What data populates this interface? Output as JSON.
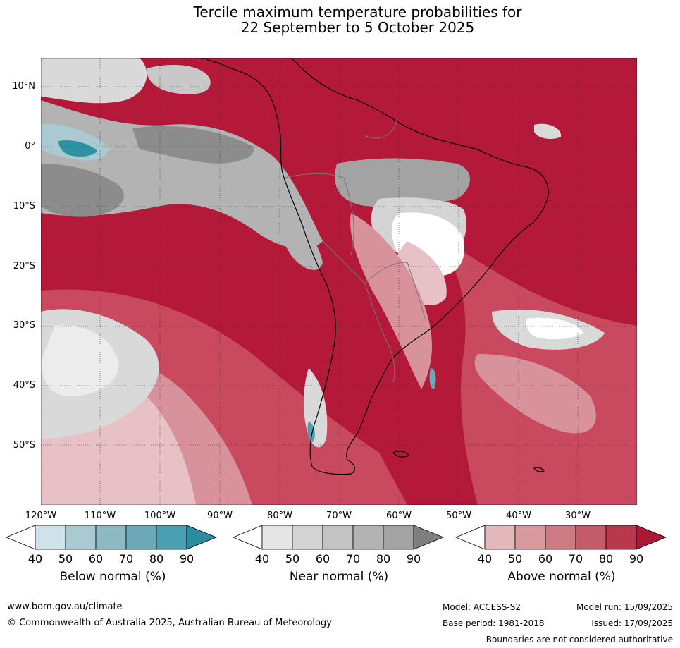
{
  "title": {
    "line1": "Tercile maximum temperature probabilities for",
    "line2": "22 September to 5 October 2025"
  },
  "lat_labels": [
    "10°N",
    "0°",
    "10°S",
    "20°S",
    "30°S",
    "40°S",
    "50°S"
  ],
  "lon_labels": [
    "120°W",
    "110°W",
    "100°W",
    "90°W",
    "80°W",
    "70°W",
    "60°W",
    "50°W",
    "40°W",
    "30°W"
  ],
  "colorbars": [
    {
      "title": "Below normal (%)",
      "ticks": [
        "40",
        "50",
        "60",
        "70",
        "80",
        "90"
      ],
      "colors": [
        "#ffffff",
        "#cde3e9",
        "#a9cad1",
        "#8cb9c2",
        "#6ba9b7",
        "#4aa0b0",
        "#2a8c9f"
      ]
    },
    {
      "title": "Near normal (%)",
      "ticks": [
        "40",
        "50",
        "60",
        "70",
        "80",
        "90"
      ],
      "colors": [
        "#ffffff",
        "#e6e6e6",
        "#d4d4d4",
        "#c3c3c3",
        "#b3b3b3",
        "#a3a3a3",
        "#7f7f7f"
      ]
    },
    {
      "title": "Above normal (%)",
      "ticks": [
        "40",
        "50",
        "60",
        "70",
        "80",
        "90"
      ],
      "colors": [
        "#ffffff",
        "#e3b8bd",
        "#d8999f",
        "#cc7a83",
        "#c35b68",
        "#b9384c",
        "#ab1836"
      ]
    }
  ],
  "footer": {
    "url": "www.bom.gov.au/climate",
    "copyright": "© Commonwealth of Australia 2025, Australian Bureau of Meteorology",
    "model": "Model: ACCESS-S2",
    "base_period": "Base period: 1981-2018",
    "model_run": "Model run: 15/09/2025",
    "issued": "Issued: 17/09/2025",
    "disclaimer": "Boundaries are not considered authoritative"
  },
  "palette": {
    "above_strong": "#b5193a",
    "above_mid": "#c94a5f",
    "above_light": "#d8929b",
    "above_pale": "#e7c1c6",
    "near_light": "#d9d9d9",
    "near_mid": "#b3b3b3",
    "near_dark": "#8c8c8c",
    "below_light": "#a9cad1",
    "below_dark": "#2f92a4",
    "white": "#ffffff"
  }
}
